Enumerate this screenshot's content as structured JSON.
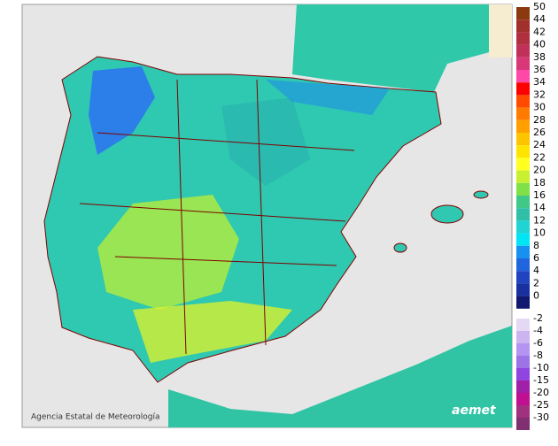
{
  "legend": {
    "upper": [
      {
        "value": 50,
        "color": "#8b3a10"
      },
      {
        "value": 44,
        "color": "#a0302a"
      },
      {
        "value": 42,
        "color": "#b03040"
      },
      {
        "value": 40,
        "color": "#c03058"
      },
      {
        "value": 38,
        "color": "#d83878"
      },
      {
        "value": 36,
        "color": "#ff48a8"
      },
      {
        "value": 34,
        "color": "#ff0000"
      },
      {
        "value": 32,
        "color": "#ff4a00"
      },
      {
        "value": 30,
        "color": "#ff7a00"
      },
      {
        "value": 28,
        "color": "#ffa000"
      },
      {
        "value": 26,
        "color": "#ffc400"
      },
      {
        "value": 24,
        "color": "#ffe400"
      },
      {
        "value": 22,
        "color": "#ffff20"
      },
      {
        "value": 20,
        "color": "#c8f030"
      },
      {
        "value": 18,
        "color": "#80e048"
      },
      {
        "value": 16,
        "color": "#40c888"
      },
      {
        "value": 14,
        "color": "#30c0a8"
      },
      {
        "value": 12,
        "color": "#20d4d4"
      },
      {
        "value": 10,
        "color": "#00e4f4"
      },
      {
        "value": 8,
        "color": "#1890f0"
      },
      {
        "value": 6,
        "color": "#2064e0"
      },
      {
        "value": 4,
        "color": "#2044c0"
      },
      {
        "value": 2,
        "color": "#1830a0"
      },
      {
        "value": 0,
        "color": "#101870"
      }
    ],
    "lower": [
      {
        "value": -2,
        "color": "#e4d8f4"
      },
      {
        "value": -4,
        "color": "#ccb4f0"
      },
      {
        "value": -6,
        "color": "#b494f0"
      },
      {
        "value": -8,
        "color": "#9c74e8"
      },
      {
        "value": -10,
        "color": "#9044e0"
      },
      {
        "value": -15,
        "color": "#a020a8"
      },
      {
        "value": -20,
        "color": "#c01090"
      },
      {
        "value": -25,
        "color": "#a03080"
      },
      {
        "value": -30,
        "color": "#803070"
      }
    ]
  },
  "footer": {
    "credit": "Agencia Estatal de Meteorología",
    "logo": "aemet"
  }
}
